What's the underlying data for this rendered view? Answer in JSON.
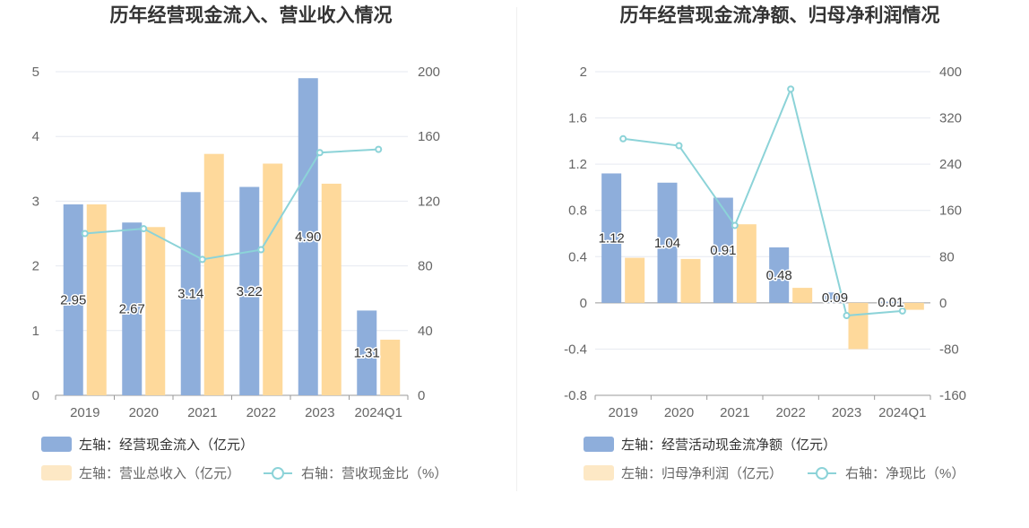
{
  "colors": {
    "bar_primary": "#8eaedb",
    "bar_secondary": "#fed99b",
    "line": "#8cd3d8",
    "grid": "#e6e9f0",
    "axis_text": "#666666",
    "title_text": "#333333"
  },
  "chart_data": [
    {
      "type": "bar",
      "title": "历年经营现金流入、营业收入情况",
      "categories": [
        "2019",
        "2020",
        "2021",
        "2022",
        "2023",
        "2024Q1"
      ],
      "y_left": {
        "min": 0,
        "max": 5,
        "ticks": [
          "0",
          "1",
          "2",
          "3",
          "4",
          "5"
        ]
      },
      "y_right": {
        "min": 0,
        "max": 200,
        "ticks": [
          "0",
          "40",
          "80",
          "120",
          "160",
          "200"
        ]
      },
      "grid": true,
      "legend_position": "bottom",
      "series": [
        {
          "name": "左轴：经营现金流入（亿元）",
          "type": "bar",
          "axis": "left",
          "values": [
            2.95,
            2.67,
            3.14,
            3.22,
            4.9,
            1.31
          ],
          "labels": [
            "2.95",
            "2.67",
            "3.14",
            "3.22",
            "4.90",
            "1.31"
          ]
        },
        {
          "name": "左轴：营业总收入（亿元）",
          "type": "bar",
          "axis": "left",
          "values": [
            2.95,
            2.6,
            3.73,
            3.58,
            3.27,
            0.86
          ]
        },
        {
          "name": "右轴：营收现金比（%）",
          "type": "line",
          "axis": "right",
          "values": [
            100,
            103,
            84,
            90,
            150,
            152
          ]
        }
      ]
    },
    {
      "type": "bar",
      "title": "历年经营现金流净额、归母净利润情况",
      "categories": [
        "2019",
        "2020",
        "2021",
        "2022",
        "2023",
        "2024Q1"
      ],
      "y_left": {
        "min": -0.8,
        "max": 2,
        "ticks": [
          "-0.8",
          "-0.4",
          "0",
          "0.4",
          "0.8",
          "1.2",
          "1.6",
          "2"
        ]
      },
      "y_right": {
        "min": -160,
        "max": 400,
        "ticks": [
          "-160",
          "-80",
          "0",
          "80",
          "160",
          "240",
          "320",
          "400"
        ]
      },
      "grid": true,
      "legend_position": "bottom",
      "series": [
        {
          "name": "左轴：经营活动现金流净额（亿元）",
          "type": "bar",
          "axis": "left",
          "values": [
            1.12,
            1.04,
            0.91,
            0.48,
            0.09,
            0.01
          ],
          "labels": [
            "1.12",
            "1.04",
            "0.91",
            "0.48",
            "0.09",
            "0.01"
          ]
        },
        {
          "name": "左轴：归母净利润（亿元）",
          "type": "bar",
          "axis": "left",
          "values": [
            0.39,
            0.38,
            0.68,
            0.13,
            -0.4,
            -0.06
          ]
        },
        {
          "name": "右轴：净现比（%）",
          "type": "line",
          "axis": "right",
          "values": [
            284,
            272,
            134,
            370,
            -22,
            -14
          ]
        }
      ]
    }
  ]
}
